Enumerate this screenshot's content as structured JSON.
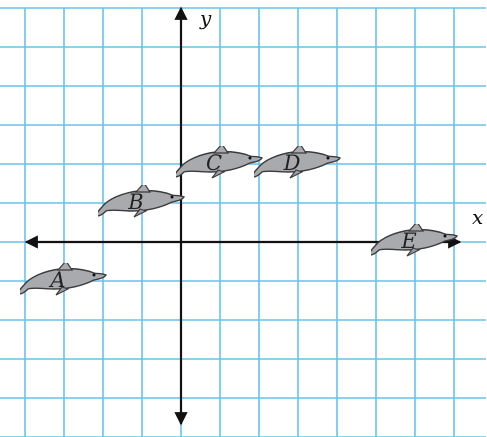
{
  "axes": {
    "x_label": "x",
    "y_label": "y",
    "xlim": [
      -4,
      8
    ],
    "ylim": [
      -5,
      6
    ]
  },
  "colors": {
    "grid": "#67c3ea",
    "axis": "#111111",
    "dolphin_body": "#a9aaad",
    "dolphin_outline": "#3b3b3d"
  },
  "dolphins": [
    {
      "label": "A",
      "x": -3,
      "y": -1
    },
    {
      "label": "B",
      "x": -1,
      "y": 1
    },
    {
      "label": "C",
      "x": 1,
      "y": 2
    },
    {
      "label": "D",
      "x": 3,
      "y": 2
    },
    {
      "label": "E",
      "x": 6,
      "y": 0
    }
  ]
}
